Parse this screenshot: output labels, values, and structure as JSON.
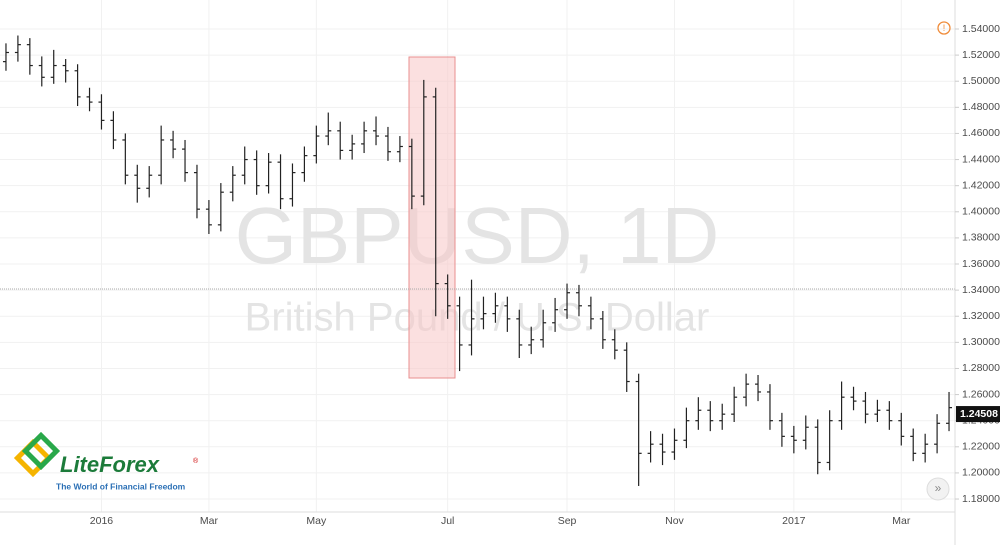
{
  "chart_data": {
    "type": "ohlc",
    "watermark_title": "GBPUSD, 1D",
    "watermark_subtitle": "British Pound / U.S. Dollar",
    "logo_name": "LiteForex",
    "logo_tagline": "The World of Financial Freedom",
    "color": "#222222",
    "ylim": [
      1.1716,
      1.5622
    ],
    "yticks": [
      {
        "value": 1.18,
        "label": "1.18000"
      },
      {
        "value": 1.2,
        "label": "1.20000"
      },
      {
        "value": 1.22,
        "label": "1.22000"
      },
      {
        "value": 1.24,
        "label": "1.24000"
      },
      {
        "value": 1.26,
        "label": "1.26000"
      },
      {
        "value": 1.28,
        "label": "1.28000"
      },
      {
        "value": 1.3,
        "label": "1.30000"
      },
      {
        "value": 1.32,
        "label": "1.32000"
      },
      {
        "value": 1.34,
        "label": "1.34000"
      },
      {
        "value": 1.36,
        "label": "1.36000"
      },
      {
        "value": 1.38,
        "label": "1.38000"
      },
      {
        "value": 1.4,
        "label": "1.40000"
      },
      {
        "value": 1.42,
        "label": "1.42000"
      },
      {
        "value": 1.44,
        "label": "1.44000"
      },
      {
        "value": 1.46,
        "label": "1.46000"
      },
      {
        "value": 1.48,
        "label": "1.48000"
      },
      {
        "value": 1.5,
        "label": "1.50000"
      },
      {
        "value": 1.52,
        "label": "1.52000"
      },
      {
        "value": 1.54,
        "label": "1.54000"
      }
    ],
    "last_price": 1.24508,
    "categories": [
      null,
      null,
      null,
      null,
      null,
      null,
      null,
      null,
      "2016",
      null,
      null,
      null,
      null,
      null,
      null,
      null,
      null,
      "Mar",
      null,
      null,
      null,
      null,
      null,
      null,
      null,
      null,
      "May",
      null,
      null,
      null,
      null,
      null,
      null,
      null,
      null,
      null,
      null,
      "Jul",
      null,
      null,
      null,
      null,
      null,
      null,
      null,
      null,
      null,
      "Sep",
      null,
      null,
      null,
      null,
      null,
      null,
      null,
      null,
      "Nov",
      null,
      null,
      null,
      null,
      null,
      null,
      null,
      null,
      null,
      "2017",
      null,
      null,
      null,
      null,
      null,
      null,
      null,
      null,
      "Mar",
      null,
      null,
      null,
      null
    ],
    "open": [
      1.515,
      1.522,
      1.528,
      1.512,
      1.503,
      1.512,
      1.508,
      1.488,
      1.484,
      1.47,
      1.455,
      1.428,
      1.418,
      1.428,
      1.455,
      1.448,
      1.43,
      1.402,
      1.39,
      1.415,
      1.428,
      1.44,
      1.42,
      1.438,
      1.41,
      1.43,
      1.443,
      1.458,
      1.462,
      1.447,
      1.452,
      1.462,
      1.458,
      1.446,
      1.45,
      1.412,
      1.488,
      1.345,
      1.328,
      1.298,
      1.318,
      1.322,
      1.328,
      1.318,
      1.298,
      1.302,
      1.315,
      1.325,
      1.338,
      1.328,
      1.318,
      1.302,
      1.294,
      1.27,
      1.215,
      1.222,
      1.216,
      1.225,
      1.24,
      1.248,
      1.24,
      1.245,
      1.258,
      1.268,
      1.262,
      1.24,
      1.228,
      1.225,
      1.235,
      1.208,
      1.24,
      1.258,
      1.255,
      1.245,
      1.248,
      1.24,
      1.228,
      1.215,
      1.222,
      1.238
    ],
    "high": [
      1.529,
      1.535,
      1.533,
      1.519,
      1.524,
      1.517,
      1.513,
      1.495,
      1.49,
      1.477,
      1.46,
      1.436,
      1.435,
      1.466,
      1.462,
      1.455,
      1.436,
      1.409,
      1.422,
      1.435,
      1.45,
      1.447,
      1.445,
      1.444,
      1.437,
      1.45,
      1.466,
      1.476,
      1.469,
      1.459,
      1.469,
      1.473,
      1.465,
      1.458,
      1.456,
      1.501,
      1.495,
      1.352,
      1.335,
      1.348,
      1.335,
      1.338,
      1.335,
      1.325,
      1.312,
      1.325,
      1.334,
      1.345,
      1.344,
      1.335,
      1.324,
      1.31,
      1.3,
      1.276,
      1.232,
      1.23,
      1.234,
      1.25,
      1.258,
      1.255,
      1.253,
      1.266,
      1.276,
      1.275,
      1.268,
      1.246,
      1.236,
      1.244,
      1.241,
      1.248,
      1.27,
      1.266,
      1.262,
      1.256,
      1.255,
      1.246,
      1.234,
      1.23,
      1.245,
      1.262
    ],
    "low": [
      1.508,
      1.515,
      1.505,
      1.496,
      1.498,
      1.499,
      1.481,
      1.477,
      1.463,
      1.448,
      1.421,
      1.407,
      1.411,
      1.421,
      1.441,
      1.423,
      1.395,
      1.383,
      1.385,
      1.408,
      1.421,
      1.413,
      1.414,
      1.402,
      1.404,
      1.423,
      1.437,
      1.451,
      1.44,
      1.44,
      1.445,
      1.451,
      1.439,
      1.438,
      1.402,
      1.405,
      1.32,
      1.318,
      1.278,
      1.29,
      1.31,
      1.315,
      1.308,
      1.288,
      1.291,
      1.296,
      1.308,
      1.318,
      1.32,
      1.31,
      1.295,
      1.287,
      1.262,
      1.19,
      1.208,
      1.206,
      1.21,
      1.219,
      1.233,
      1.232,
      1.233,
      1.239,
      1.251,
      1.255,
      1.233,
      1.22,
      1.215,
      1.218,
      1.199,
      1.202,
      1.233,
      1.248,
      1.238,
      1.239,
      1.233,
      1.221,
      1.209,
      1.208,
      1.215,
      1.232
    ],
    "close": [
      1.522,
      1.528,
      1.512,
      1.503,
      1.512,
      1.508,
      1.488,
      1.484,
      1.47,
      1.455,
      1.428,
      1.418,
      1.428,
      1.455,
      1.448,
      1.43,
      1.402,
      1.39,
      1.415,
      1.428,
      1.44,
      1.42,
      1.438,
      1.41,
      1.43,
      1.443,
      1.458,
      1.462,
      1.447,
      1.452,
      1.462,
      1.458,
      1.446,
      1.45,
      1.412,
      1.488,
      1.345,
      1.328,
      1.298,
      1.318,
      1.322,
      1.328,
      1.318,
      1.298,
      1.302,
      1.315,
      1.325,
      1.338,
      1.328,
      1.318,
      1.302,
      1.294,
      1.27,
      1.215,
      1.222,
      1.216,
      1.225,
      1.24,
      1.248,
      1.24,
      1.245,
      1.258,
      1.268,
      1.262,
      1.24,
      1.228,
      1.225,
      1.235,
      1.208,
      1.24,
      1.258,
      1.255,
      1.245,
      1.248,
      1.24,
      1.228,
      1.215,
      1.222,
      1.238,
      1.25
    ]
  }
}
